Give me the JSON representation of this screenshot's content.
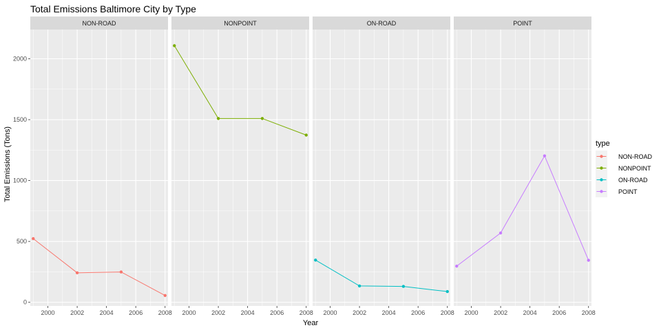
{
  "chart_data": {
    "type": "line",
    "title": "Total Emissions Baltimore City by Type",
    "xlabel": "Year",
    "ylabel": "Total Emissions (Tons)",
    "x": [
      1999,
      2002,
      2005,
      2008
    ],
    "xlim": [
      1998.8,
      2008.2
    ],
    "ylim": [
      -30,
      2240
    ],
    "x_ticks": [
      2000,
      2002,
      2004,
      2006,
      2008
    ],
    "y_ticks": [
      0,
      500,
      1000,
      1500,
      2000
    ],
    "grid": true,
    "legend_position": "right",
    "legend_title": "type",
    "series": [
      {
        "name": "NON-ROAD",
        "color": "#F8766D",
        "values": [
          522.9,
          242.0,
          248.9,
          55.8
        ]
      },
      {
        "name": "NONPOINT",
        "color": "#7CAE00",
        "values": [
          2107.6,
          1509.5,
          1509.5,
          1373.2
        ]
      },
      {
        "name": "ON-ROAD",
        "color": "#00BFC4",
        "values": [
          346.8,
          134.3,
          130.4,
          88.3
        ]
      },
      {
        "name": "POINT",
        "color": "#C77CFF",
        "values": [
          296.8,
          569.3,
          1202.5,
          344.98
        ]
      }
    ]
  }
}
